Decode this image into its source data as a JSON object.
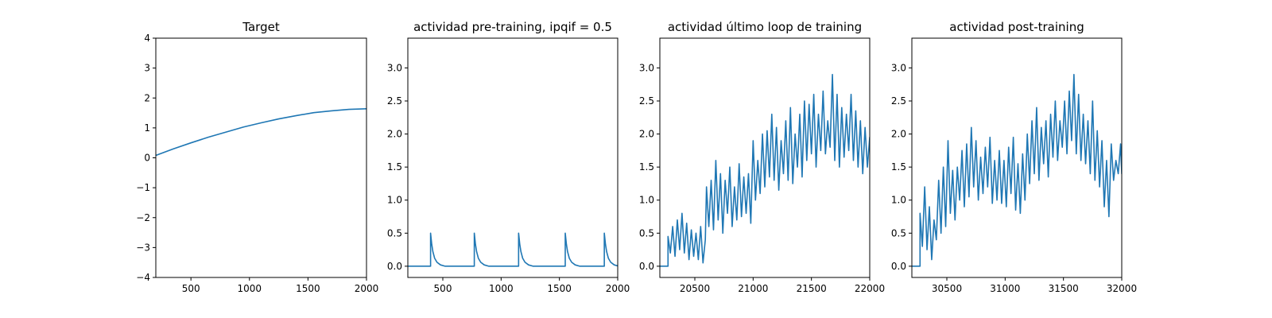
{
  "figure": {
    "background": "#ffffff",
    "line_color": "#1f77b4"
  },
  "chart_data": [
    {
      "type": "line",
      "title": "Target",
      "xlabel": "",
      "ylabel": "",
      "xlim": [
        200,
        2000
      ],
      "ylim": [
        -4,
        4
      ],
      "xticks": [
        500,
        1000,
        1500,
        2000
      ],
      "yticks": [
        -4,
        -3,
        -2,
        -1,
        0,
        1,
        2,
        3,
        4
      ],
      "ytick_decimals": 0,
      "grid": false,
      "series": [
        {
          "x": [
            200,
            350,
            500,
            650,
            800,
            950,
            1100,
            1250,
            1400,
            1550,
            1700,
            1850,
            2000
          ],
          "y": [
            0.08,
            0.3,
            0.5,
            0.69,
            0.86,
            1.03,
            1.17,
            1.3,
            1.41,
            1.51,
            1.57,
            1.62,
            1.64
          ]
        }
      ]
    },
    {
      "type": "line",
      "title": "actividad pre-training, ipqif = 0.5",
      "xlabel": "",
      "ylabel": "",
      "xlim": [
        200,
        2000
      ],
      "ylim": [
        -0.17,
        3.45
      ],
      "xticks": [
        500,
        1000,
        1500,
        2000
      ],
      "yticks": [
        0.0,
        0.5,
        1.0,
        1.5,
        2.0,
        2.5,
        3.0
      ],
      "ytick_decimals": 1,
      "grid": false,
      "series": [
        {
          "x": [
            200,
            395,
            395,
            405,
            415,
            430,
            450,
            480,
            520,
            770,
            770,
            780,
            790,
            805,
            825,
            855,
            895,
            1150,
            1150,
            1160,
            1170,
            1185,
            1205,
            1235,
            1275,
            1550,
            1550,
            1560,
            1570,
            1585,
            1605,
            1635,
            1675,
            1885,
            1885,
            1895,
            1905,
            1920,
            1940,
            1970,
            2000
          ],
          "y": [
            0,
            0,
            0.5,
            0.33,
            0.22,
            0.12,
            0.06,
            0.02,
            0,
            0,
            0.5,
            0.33,
            0.22,
            0.12,
            0.06,
            0.02,
            0,
            0,
            0.5,
            0.33,
            0.22,
            0.12,
            0.06,
            0.02,
            0,
            0,
            0.5,
            0.33,
            0.22,
            0.12,
            0.06,
            0.02,
            0,
            0,
            0.5,
            0.33,
            0.22,
            0.12,
            0.06,
            0.02,
            0.005
          ]
        }
      ]
    },
    {
      "type": "line",
      "title": "actividad último loop de training",
      "xlabel": "",
      "ylabel": "",
      "xlim": [
        20200,
        22000
      ],
      "ylim": [
        -0.17,
        3.45
      ],
      "xticks": [
        20500,
        21000,
        21500,
        22000
      ],
      "yticks": [
        0.0,
        0.5,
        1.0,
        1.5,
        2.0,
        2.5,
        3.0
      ],
      "ytick_decimals": 1,
      "grid": false,
      "series": [
        {
          "x": [
            20200,
            20270,
            20270,
            20290,
            20310,
            20330,
            20350,
            20370,
            20390,
            20410,
            20430,
            20450,
            20470,
            20490,
            20510,
            20530,
            20550,
            20570,
            20590,
            20600,
            20620,
            20640,
            20660,
            20680,
            20700,
            20720,
            20740,
            20760,
            20780,
            20800,
            20820,
            20840,
            20860,
            20880,
            20900,
            20920,
            20940,
            20960,
            20980,
            21000,
            21020,
            21040,
            21060,
            21080,
            21100,
            21120,
            21140,
            21160,
            21180,
            21200,
            21220,
            21240,
            21260,
            21280,
            21300,
            21320,
            21340,
            21360,
            21380,
            21400,
            21420,
            21440,
            21460,
            21480,
            21500,
            21520,
            21540,
            21560,
            21580,
            21600,
            21620,
            21640,
            21660,
            21680,
            21700,
            21720,
            21740,
            21760,
            21780,
            21800,
            21820,
            21840,
            21860,
            21880,
            21900,
            21920,
            21940,
            21960,
            21980,
            22000
          ],
          "y": [
            0,
            0,
            0.45,
            0.2,
            0.6,
            0.15,
            0.7,
            0.25,
            0.8,
            0.2,
            0.65,
            0.1,
            0.55,
            0.15,
            0.5,
            0.1,
            0.6,
            0.05,
            0.4,
            1.2,
            0.6,
            1.3,
            0.55,
            1.6,
            0.7,
            1.4,
            0.5,
            1.3,
            0.8,
            1.5,
            0.6,
            1.2,
            0.7,
            1.55,
            0.75,
            1.35,
            0.8,
            1.4,
            0.65,
            1.9,
            1.0,
            1.6,
            1.1,
            2.0,
            1.2,
            2.05,
            1.35,
            2.3,
            1.3,
            2.1,
            1.15,
            1.9,
            1.4,
            2.2,
            1.3,
            2.4,
            1.25,
            2.0,
            1.5,
            2.3,
            1.35,
            2.5,
            1.6,
            2.45,
            1.7,
            2.6,
            1.5,
            2.3,
            1.75,
            2.65,
            1.7,
            2.2,
            1.8,
            2.9,
            1.6,
            2.6,
            1.5,
            2.4,
            1.65,
            2.3,
            1.75,
            2.6,
            1.6,
            2.35,
            1.5,
            2.2,
            1.4,
            2.1,
            1.5,
            1.95
          ]
        }
      ]
    },
    {
      "type": "line",
      "title": "actividad post-training",
      "xlabel": "",
      "ylabel": "",
      "xlim": [
        30200,
        32000
      ],
      "ylim": [
        -0.17,
        3.45
      ],
      "xticks": [
        30500,
        31000,
        31500,
        32000
      ],
      "yticks": [
        0.0,
        0.5,
        1.0,
        1.5,
        2.0,
        2.5,
        3.0
      ],
      "ytick_decimals": 1,
      "grid": false,
      "series": [
        {
          "x": [
            30200,
            30270,
            30270,
            30290,
            30310,
            30330,
            30350,
            30370,
            30390,
            30410,
            30430,
            30450,
            30470,
            30490,
            30510,
            30530,
            30550,
            30570,
            30590,
            30610,
            30630,
            30650,
            30670,
            30690,
            30710,
            30730,
            30750,
            30770,
            30790,
            30810,
            30830,
            30850,
            30870,
            30890,
            30910,
            30930,
            30950,
            30970,
            30990,
            31010,
            31030,
            31050,
            31070,
            31090,
            31110,
            31130,
            31150,
            31170,
            31190,
            31210,
            31230,
            31250,
            31270,
            31290,
            31310,
            31330,
            31350,
            31370,
            31390,
            31410,
            31430,
            31450,
            31470,
            31490,
            31510,
            31530,
            31550,
            31570,
            31590,
            31610,
            31630,
            31650,
            31670,
            31690,
            31710,
            31730,
            31750,
            31770,
            31790,
            31810,
            31830,
            31850,
            31870,
            31890,
            31910,
            31930,
            31950,
            31970,
            31990,
            32000
          ],
          "y": [
            0,
            0,
            0.8,
            0.3,
            1.2,
            0.25,
            0.9,
            0.1,
            0.7,
            0.4,
            1.3,
            0.5,
            1.5,
            0.6,
            1.9,
            0.8,
            1.45,
            0.7,
            1.5,
            1.0,
            1.75,
            0.9,
            1.85,
            1.05,
            2.1,
            1.2,
            1.9,
            1.0,
            1.65,
            1.1,
            1.8,
            1.2,
            1.95,
            0.95,
            1.6,
            1.0,
            1.75,
            0.95,
            1.6,
            0.9,
            1.8,
            1.1,
            1.95,
            0.85,
            1.55,
            0.8,
            1.7,
            1.0,
            2.0,
            1.25,
            2.2,
            1.4,
            2.4,
            1.3,
            2.1,
            1.55,
            2.2,
            1.35,
            2.3,
            1.65,
            2.5,
            1.6,
            2.2,
            1.8,
            2.5,
            1.7,
            2.65,
            1.9,
            2.9,
            1.7,
            2.6,
            1.6,
            2.3,
            1.55,
            2.2,
            1.4,
            2.5,
            1.3,
            2.05,
            1.2,
            1.9,
            0.9,
            1.6,
            0.75,
            1.85,
            1.3,
            1.6,
            1.4,
            1.85,
            1.4
          ]
        }
      ]
    }
  ]
}
